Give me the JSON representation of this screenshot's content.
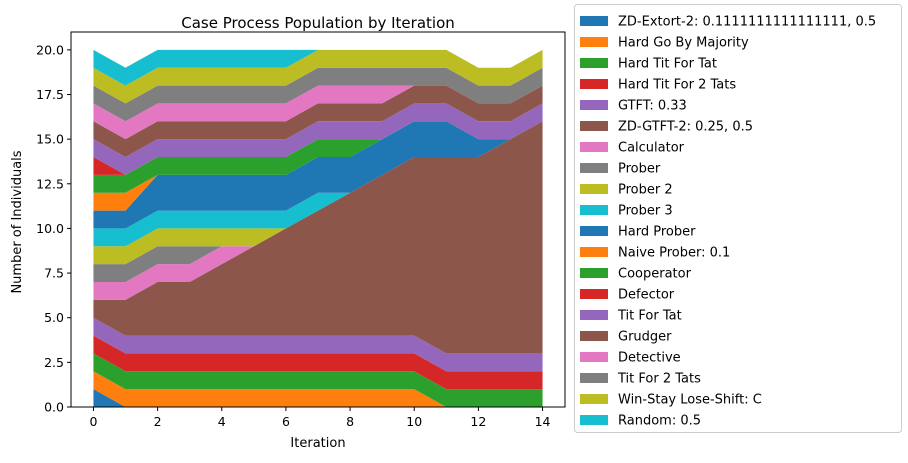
{
  "chart_data": {
    "type": "area",
    "stacked": true,
    "title": "Case Process Population by Iteration",
    "xlabel": "Iteration",
    "ylabel": "Number of Individuals",
    "xlim": [
      -0.7,
      14.7
    ],
    "ylim": [
      0,
      21.0
    ],
    "xticks": [
      0,
      2,
      4,
      6,
      8,
      10,
      12,
      14
    ],
    "yticks": [
      0.0,
      2.5,
      5.0,
      7.5,
      10.0,
      12.5,
      15.0,
      17.5,
      20.0
    ],
    "ytick_labels": [
      "0.0",
      "2.5",
      "5.0",
      "7.5",
      "10.0",
      "12.5",
      "15.0",
      "17.5",
      "20.0"
    ],
    "legend_position": "outside-right",
    "x": [
      0,
      1,
      2,
      3,
      4,
      5,
      6,
      7,
      8,
      9,
      10,
      11,
      12,
      13,
      14
    ],
    "series": [
      {
        "name": "ZD-Extort-2: 0.1111111111111111, 0.5",
        "color": "#1f77b4",
        "values": [
          1,
          0,
          0,
          0,
          0,
          0,
          0,
          0,
          0,
          0,
          0,
          0,
          0,
          0,
          0
        ]
      },
      {
        "name": "Hard Go By Majority",
        "color": "#ff7f0e",
        "values": [
          1,
          1,
          1,
          1,
          1,
          1,
          1,
          1,
          1,
          1,
          1,
          0,
          0,
          0,
          0
        ]
      },
      {
        "name": "Hard Tit For Tat",
        "color": "#2ca02c",
        "values": [
          1,
          1,
          1,
          1,
          1,
          1,
          1,
          1,
          1,
          1,
          1,
          1,
          1,
          1,
          1
        ]
      },
      {
        "name": "Hard Tit For 2 Tats",
        "color": "#d62728",
        "values": [
          1,
          1,
          1,
          1,
          1,
          1,
          1,
          1,
          1,
          1,
          1,
          1,
          1,
          1,
          1
        ]
      },
      {
        "name": "GTFT: 0.33",
        "color": "#9467bd",
        "values": [
          1,
          1,
          1,
          1,
          1,
          1,
          1,
          1,
          1,
          1,
          1,
          1,
          1,
          1,
          1
        ]
      },
      {
        "name": "ZD-GTFT-2: 0.25, 0.5",
        "color": "#8c564b",
        "values": [
          1,
          2,
          3,
          3,
          4,
          5,
          6,
          7,
          8,
          9,
          10,
          11,
          11,
          12,
          13
        ]
      },
      {
        "name": "Calculator",
        "color": "#e377c2",
        "values": [
          1,
          1,
          1,
          1,
          1,
          0,
          0,
          0,
          0,
          0,
          0,
          0,
          0,
          0,
          0
        ]
      },
      {
        "name": "Prober",
        "color": "#7f7f7f",
        "values": [
          1,
          1,
          1,
          1,
          0,
          0,
          0,
          0,
          0,
          0,
          0,
          0,
          0,
          0,
          0
        ]
      },
      {
        "name": "Prober 2",
        "color": "#bcbd22",
        "values": [
          1,
          1,
          1,
          1,
          1,
          1,
          0,
          0,
          0,
          0,
          0,
          0,
          0,
          0,
          0
        ]
      },
      {
        "name": "Prober 3",
        "color": "#17becf",
        "values": [
          1,
          1,
          1,
          1,
          1,
          1,
          1,
          1,
          0,
          0,
          0,
          0,
          0,
          0,
          0
        ]
      },
      {
        "name": "Hard Prober",
        "color": "#1f77b4",
        "values": [
          1,
          1,
          2,
          2,
          2,
          2,
          2,
          2,
          2,
          2,
          2,
          2,
          1,
          0,
          0
        ]
      },
      {
        "name": "Naive Prober: 0.1",
        "color": "#ff7f0e",
        "values": [
          1,
          1,
          0,
          0,
          0,
          0,
          0,
          0,
          0,
          0,
          0,
          0,
          0,
          0,
          0
        ]
      },
      {
        "name": "Cooperator",
        "color": "#2ca02c",
        "values": [
          1,
          1,
          1,
          1,
          1,
          1,
          1,
          1,
          1,
          0,
          0,
          0,
          0,
          0,
          0
        ]
      },
      {
        "name": "Defector",
        "color": "#d62728",
        "values": [
          1,
          0,
          0,
          0,
          0,
          0,
          0,
          0,
          0,
          0,
          0,
          0,
          0,
          0,
          0
        ]
      },
      {
        "name": "Tit For Tat",
        "color": "#9467bd",
        "values": [
          1,
          1,
          1,
          1,
          1,
          1,
          1,
          1,
          1,
          1,
          1,
          1,
          1,
          1,
          1
        ]
      },
      {
        "name": "Grudger",
        "color": "#8c564b",
        "values": [
          1,
          1,
          1,
          1,
          1,
          1,
          1,
          1,
          1,
          1,
          1,
          1,
          1,
          1,
          1
        ]
      },
      {
        "name": "Detective",
        "color": "#e377c2",
        "values": [
          1,
          1,
          1,
          1,
          1,
          1,
          1,
          1,
          1,
          1,
          0,
          0,
          0,
          0,
          0
        ]
      },
      {
        "name": "Tit For 2 Tats",
        "color": "#7f7f7f",
        "values": [
          1,
          1,
          1,
          1,
          1,
          1,
          1,
          1,
          1,
          1,
          1,
          1,
          1,
          1,
          1
        ]
      },
      {
        "name": "Win-Stay Lose-Shift: C",
        "color": "#bcbd22",
        "values": [
          1,
          1,
          1,
          1,
          1,
          1,
          1,
          1,
          1,
          1,
          1,
          1,
          1,
          1,
          1
        ]
      },
      {
        "name": "Random: 0.5",
        "color": "#17becf",
        "values": [
          1,
          1,
          1,
          1,
          1,
          1,
          1,
          0,
          0,
          0,
          0,
          0,
          0,
          0,
          0
        ]
      }
    ]
  }
}
